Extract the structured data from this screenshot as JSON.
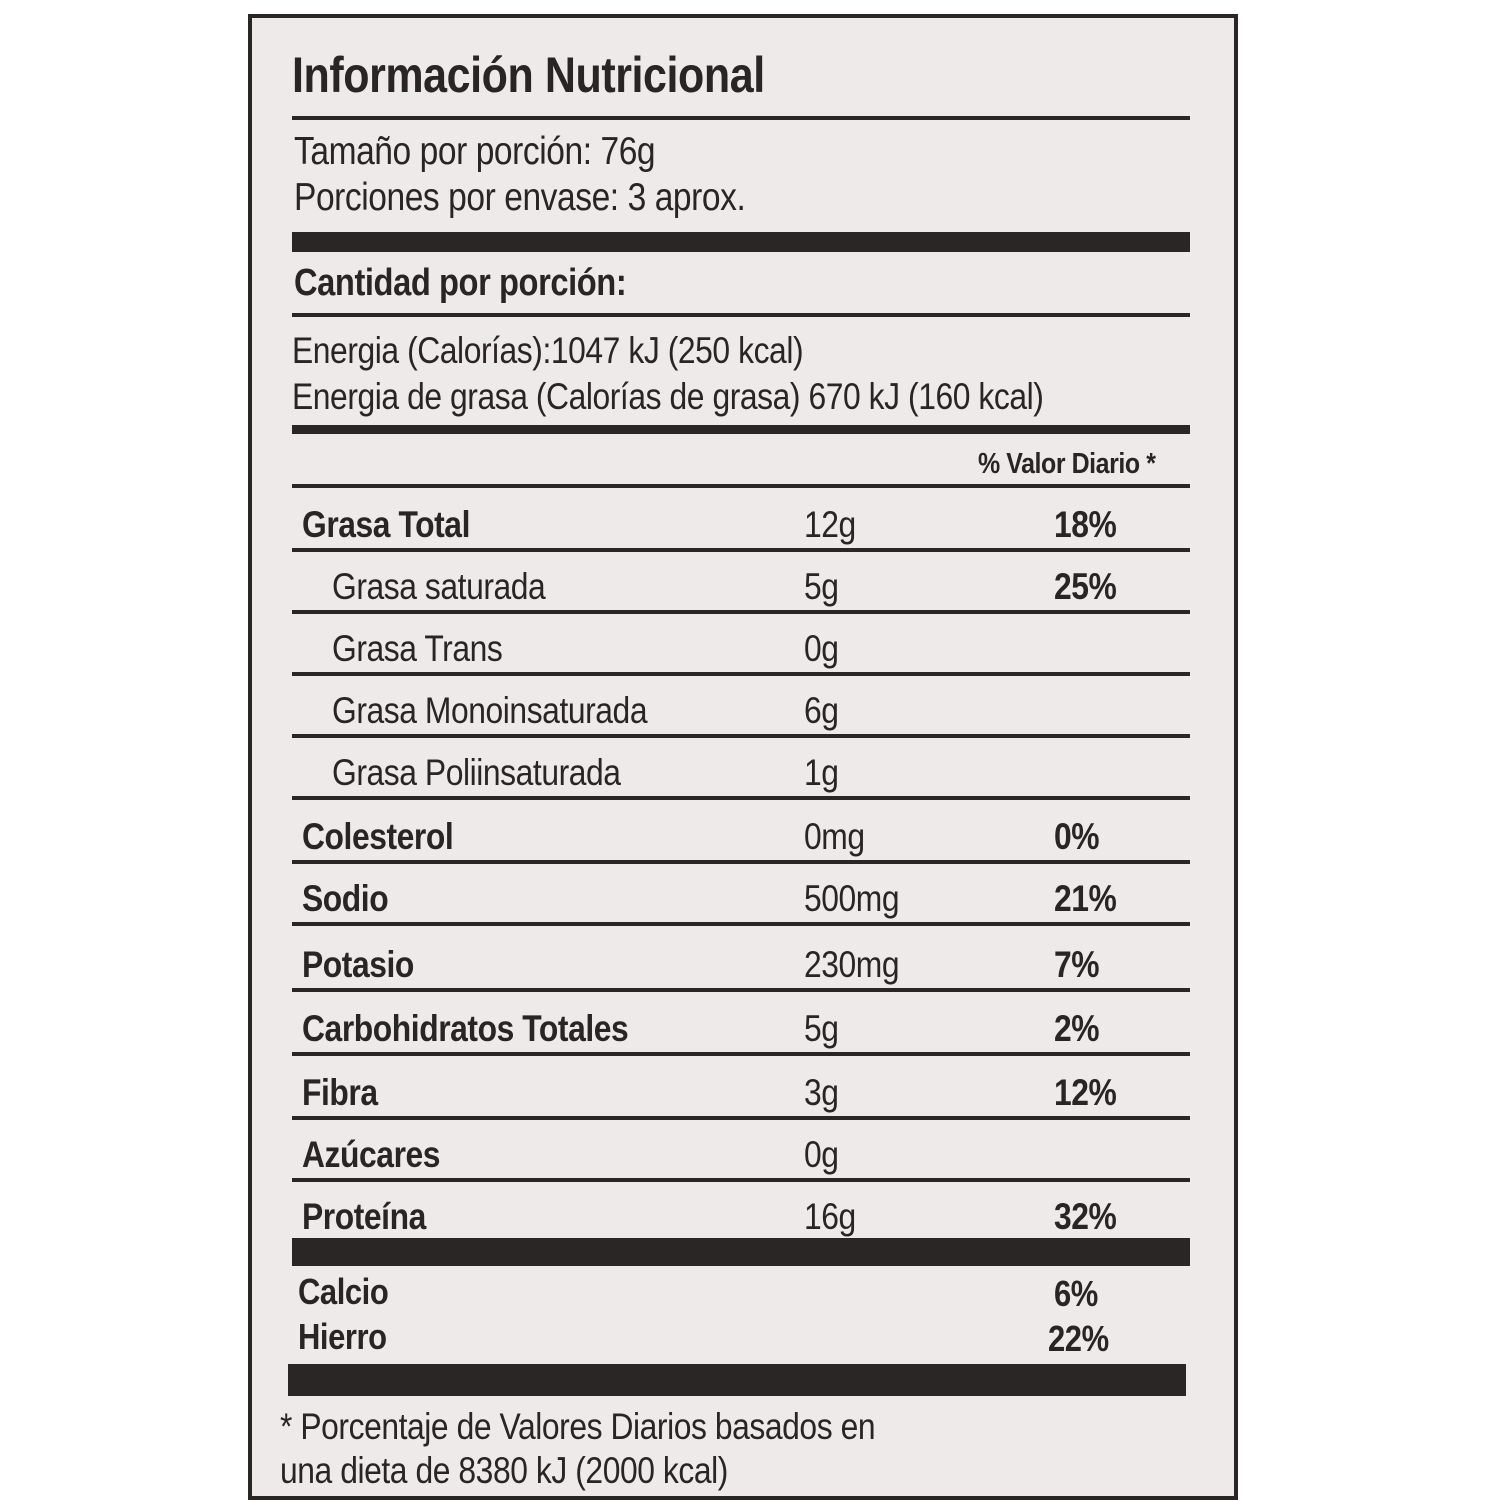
{
  "title": "Información Nutricional",
  "serving_size": "Tamaño por porción: 76g",
  "servings_per_container": "Porciones por envase: 3 aprox.",
  "amount_per_serving": "Cantidad por porción:",
  "energy": "Energia (Calorías):1047 kJ (250 kcal)",
  "energy_from_fat": "Energia de grasa (Calorías de grasa) 670 kJ (160 kcal)",
  "daily_value_header": "% Valor Diario *",
  "nutrients": [
    {
      "name": "Grasa Total",
      "amount": "12g",
      "dv": "18%"
    },
    {
      "name": "Grasa saturada",
      "amount": "5g",
      "dv": "25%"
    },
    {
      "name": "Grasa Trans",
      "amount": "0g",
      "dv": ""
    },
    {
      "name": "Grasa Monoinsaturada",
      "amount": "6g",
      "dv": ""
    },
    {
      "name": "Grasa Poliinsaturada",
      "amount": "1g",
      "dv": ""
    },
    {
      "name": "Colesterol",
      "amount": "0mg",
      "dv": "0%"
    },
    {
      "name": "Sodio",
      "amount": "500mg",
      "dv": "21%"
    },
    {
      "name": "Potasio",
      "amount": "230mg",
      "dv": "7%"
    },
    {
      "name": "Carbohidratos Totales",
      "amount": "5g",
      "dv": "2%"
    },
    {
      "name": "Fibra",
      "amount": "3g",
      "dv": "12%"
    },
    {
      "name": "Azúcares",
      "amount": "0g",
      "dv": ""
    },
    {
      "name": "Proteína",
      "amount": "16g",
      "dv": "32%"
    }
  ],
  "minerals": [
    {
      "name": "Calcio",
      "dv": "6%"
    },
    {
      "name": "Hierro",
      "dv": "22%"
    }
  ],
  "footnote_line1": "* Porcentaje de Valores Diarios basados en",
  "footnote_line2": "una dieta de 8380 kJ (2000 kcal)"
}
